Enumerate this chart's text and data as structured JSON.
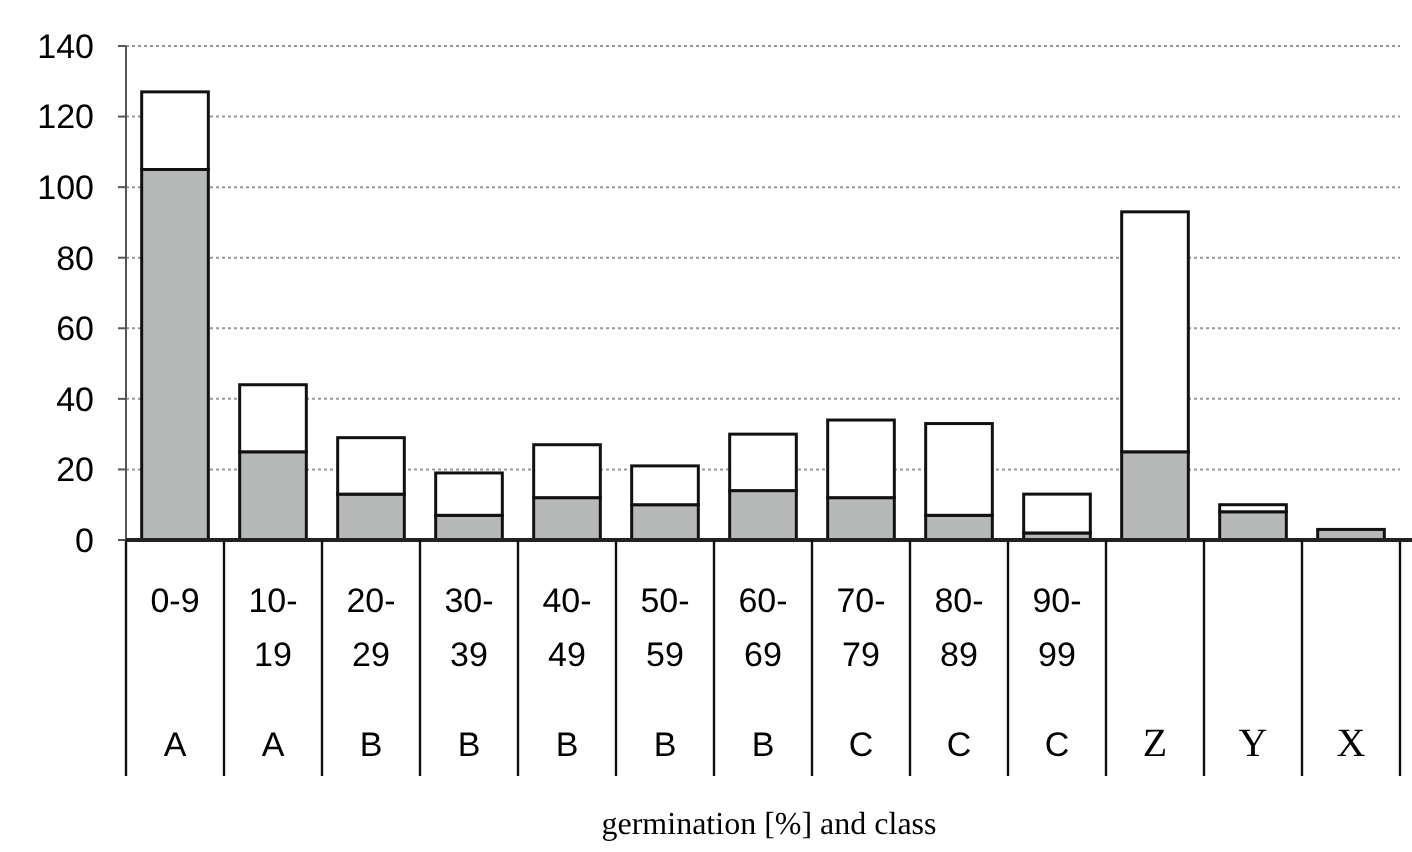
{
  "chart_data": {
    "type": "bar",
    "stacked": true,
    "xlabel": "germination [%] and class",
    "categories": [
      "0-9 A",
      "10-19 A",
      "20-29 B",
      "30-39 B",
      "40-49 B",
      "50-59 B",
      "60-69 B",
      "70-79 C",
      "80-89 C",
      "90-99 C",
      "Z",
      "Y",
      "X"
    ],
    "series": [
      {
        "color": "#b7b9b9",
        "values": [
          105,
          25,
          13,
          7,
          12,
          10,
          14,
          12,
          7,
          2,
          25,
          8,
          3
        ]
      },
      {
        "color": "#ffffff",
        "values": [
          22,
          19,
          16,
          12,
          15,
          11,
          16,
          22,
          26,
          11,
          68,
          2,
          0
        ]
      }
    ],
    "ylim": [
      0,
      140
    ],
    "yticks": [
      0,
      20,
      40,
      60,
      80,
      100,
      120,
      140
    ],
    "grid": "y"
  }
}
